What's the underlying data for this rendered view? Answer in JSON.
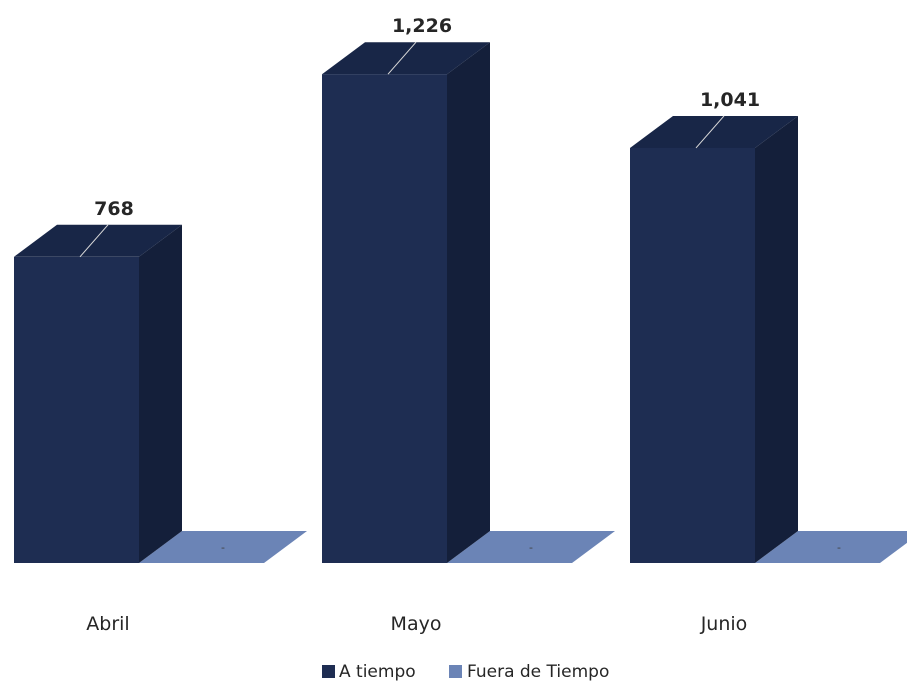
{
  "chart_data": {
    "type": "bar",
    "categories": [
      "Abril",
      "Mayo",
      "Junio"
    ],
    "series": [
      {
        "name": "A tiempo",
        "values": [
          768,
          1226,
          1041
        ],
        "labels": [
          "768",
          "1,226",
          "1,041"
        ],
        "color": "#1e2d52"
      },
      {
        "name": "Fuera de Tiempo",
        "values": [
          0,
          0,
          0
        ],
        "labels": [
          "-",
          "-",
          "-"
        ],
        "color": "#6b84b6"
      }
    ],
    "legend_position": "bottom-center",
    "style": "3d-column",
    "grid": false
  }
}
